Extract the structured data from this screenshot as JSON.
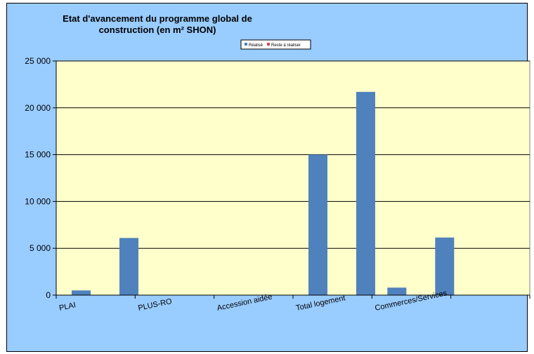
{
  "chart_data": {
    "type": "bar",
    "title": "Etat d'avancement du programme global de construction (en m² SHON)",
    "categories": [
      "PLAI",
      "PLUS-RO",
      "Accession aidée",
      "Total logement",
      "Commerces/Services",
      ""
    ],
    "series": [
      {
        "name": "Réalisé",
        "color": "#4f81bd",
        "values": [
          500,
          0,
          0,
          15000,
          800,
          0
        ]
      },
      {
        "name": "Reste à réaliser",
        "color": "#c0504d",
        "values": [
          6100,
          0,
          0,
          21700,
          6150,
          0
        ]
      }
    ],
    "ylim": [
      0,
      25000
    ],
    "yticks": [
      0,
      5000,
      10000,
      15000,
      20000,
      25000
    ],
    "ytick_labels": [
      "0",
      "5 000",
      "10 000",
      "15 000",
      "20 000",
      "25 000"
    ],
    "grid": true,
    "legend_position": "top-center",
    "plot_background": "#ffffcc",
    "chart_background": "#99ccff"
  }
}
